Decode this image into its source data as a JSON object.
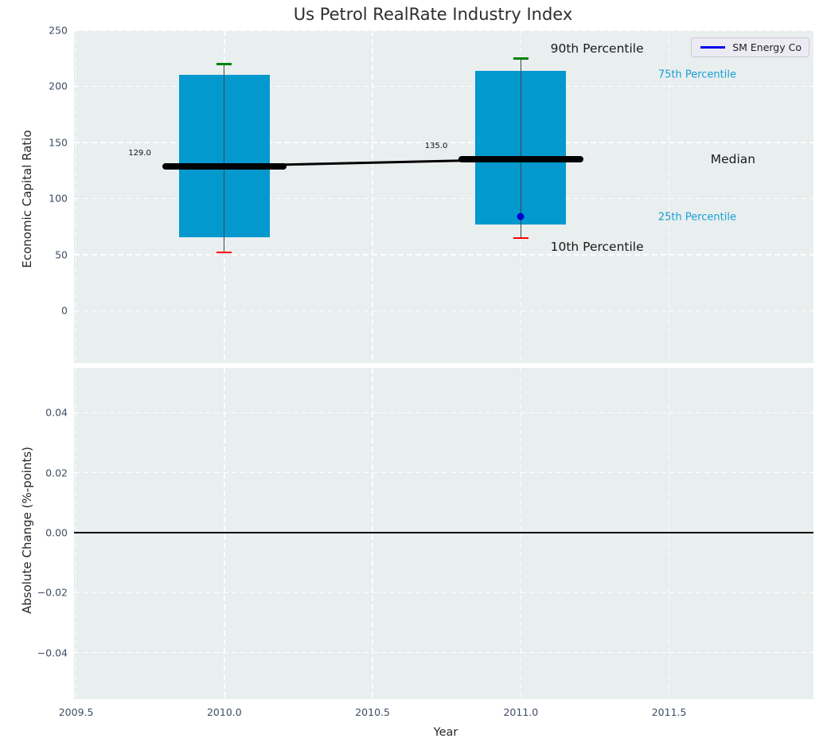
{
  "title": "Us Petrol RealRate Industry Index",
  "colors": {
    "axes_bg": "#e9eeef",
    "box_fill": "#0499ce",
    "whisker": "#3c4549",
    "cap_high": "#008000",
    "cap_low": "#ff0000",
    "median": "#000000",
    "trend_line": "#000000",
    "company_point": "#0000cd",
    "legend_line": "#0000ee",
    "percentile_text": "#16a0d5",
    "tick_text": "#3f4d63",
    "zero_line": "#000000"
  },
  "chart_data": [
    {
      "type": "boxplot",
      "title": "Us Petrol RealRate Industry Index",
      "ylabel": "Economic Capital Ratio",
      "xlabel": "",
      "xlim": [
        2009.493,
        2011.987
      ],
      "ylim": [
        -46.5,
        250
      ],
      "grid": true,
      "xticks": [
        2009.5,
        2010.0,
        2010.5,
        2011.0,
        2011.5
      ],
      "xtick_labels": [
        "2009.5",
        "2010.0",
        "2010.5",
        "2011.0",
        "2011.5"
      ],
      "yticks": [
        0,
        50,
        100,
        150,
        200,
        250
      ],
      "ytick_labels": [
        "0",
        "50",
        "100",
        "150",
        "200",
        "250"
      ],
      "legend": {
        "label": "SM Energy Co",
        "position": "upper right"
      },
      "boxes": [
        {
          "x": 2010,
          "whisker_low": 52,
          "p25": 65.5,
          "median": 129,
          "p75": 210,
          "whisker_high": 220,
          "label": "129.0"
        },
        {
          "x": 2011,
          "whisker_low": 65,
          "p25": 77,
          "median": 135,
          "p75": 214,
          "whisker_high": 225,
          "label": "135.0"
        }
      ],
      "median_trend": {
        "x": [
          2010,
          2011
        ],
        "y": [
          129,
          135
        ]
      },
      "company_point": {
        "name": "SM Energy Co",
        "x": 2011,
        "y": 84
      },
      "annotations": [
        {
          "text": "90th Percentile",
          "x": 2011.1,
          "y": 234,
          "size": 15.5,
          "color": "#1a1a1a"
        },
        {
          "text": "75th Percentile",
          "x": 2011.463,
          "y": 210,
          "size": 13,
          "color": "#16a0d5"
        },
        {
          "text": "Median",
          "x": 2011.64,
          "y": 135,
          "size": 15.5,
          "color": "#1a1a1a"
        },
        {
          "text": "25th Percentile",
          "x": 2011.463,
          "y": 83,
          "size": 13,
          "color": "#16a0d5"
        },
        {
          "text": "10th Percentile",
          "x": 2011.1,
          "y": 57,
          "size": 15.5,
          "color": "#1a1a1a"
        }
      ]
    },
    {
      "type": "line",
      "ylabel": "Absolute Change (%-points)",
      "xlabel": "Year",
      "xlim": [
        2009.493,
        2011.987
      ],
      "ylim": [
        -0.0555,
        0.055
      ],
      "grid": true,
      "xticks": [
        2009.5,
        2010.0,
        2010.5,
        2011.0,
        2011.5
      ],
      "xtick_labels": [
        "2009.5",
        "2010.0",
        "2010.5",
        "2011.0",
        "2011.5"
      ],
      "yticks": [
        0.04,
        0.02,
        0.0,
        -0.02,
        -0.04
      ],
      "ytick_labels": [
        "0.04",
        "0.02",
        "0.00",
        "−0.02",
        "−0.04"
      ],
      "axhline": 0.0,
      "series": []
    }
  ]
}
